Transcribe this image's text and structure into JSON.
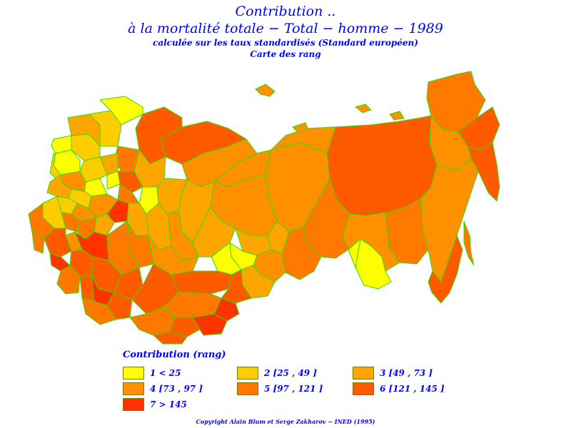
{
  "title": {
    "line1": "Contribution ..",
    "line2": "à  la  mortalité  totale  −  Total  −  homme  −  1989",
    "line3": "calculée sur les taux standardisés (Standard européen)",
    "line4": "Carte des rang"
  },
  "colors": {
    "c1": "#ffff00",
    "c2": "#ffcc00",
    "c3": "#ffa500",
    "c4": "#ff9000",
    "c5": "#ff7800",
    "c6": "#ff5a00",
    "c7": "#ff3300",
    "border": "#33dd00",
    "text": "#0000ff"
  },
  "legend": {
    "title": "Contribution  (rang)",
    "items": [
      {
        "label": "1  <  25",
        "color": "#ffff00"
      },
      {
        "label": "2  [25  ,  49 ]",
        "color": "#ffcc00"
      },
      {
        "label": "3  [49  ,  73 ]",
        "color": "#ffa500"
      },
      {
        "label": "4  [73  ,  97 ]",
        "color": "#ff9000"
      },
      {
        "label": "5  [97  ,  121 ]",
        "color": "#ff7800"
      },
      {
        "label": "6  [121  ,  145 ]",
        "color": "#ff5a00"
      },
      {
        "label": "7  >  145",
        "color": "#ff3300"
      }
    ]
  },
  "copyright": "Copyright  Alain  Blum  et  Serge  Zakharov  −  INED  (1995)"
}
